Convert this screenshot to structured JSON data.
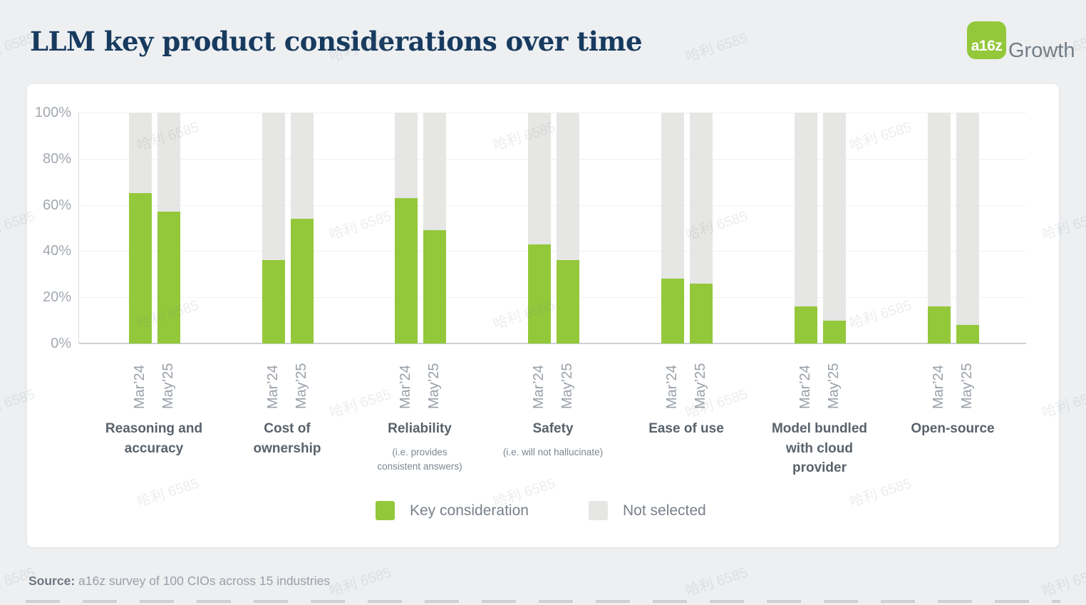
{
  "page": {
    "title": "LLM key product considerations over time",
    "logo": {
      "badge": "a16z",
      "suffix": "Growth"
    },
    "source_label": "Source:",
    "source_text": " a16z survey of 100 CIOs across 15 industries",
    "watermark_text": "哈利 6585"
  },
  "colors": {
    "green": "#93c83a",
    "not_selected_gray": "#e6e6e4",
    "title_navy": "#173a5f",
    "page_background": "#edeff1",
    "card_background": "#ffffff"
  },
  "chart_data": {
    "type": "bar",
    "stacked": true,
    "title": "LLM key product considerations over time",
    "ylim": [
      0,
      100
    ],
    "ytick_labels": [
      "0%",
      "20%",
      "40%",
      "60%",
      "80%",
      "100%"
    ],
    "grid": true,
    "unit": "percent",
    "categories": [
      "Reasoning and accuracy",
      "Cost of ownership",
      "Reliability",
      "Safety",
      "Ease of use",
      "Model bundled with cloud provider",
      "Open-source"
    ],
    "category_sublabels": [
      [],
      [],
      [
        "(i.e. provides",
        "consistent answers)"
      ],
      [
        "(i.e. will not hallucinate)"
      ],
      [],
      [],
      []
    ],
    "x_periods": [
      "Mar’24",
      "May’25"
    ],
    "series": [
      {
        "name": "Mar’24",
        "values": [
          65,
          36,
          63,
          43,
          28,
          16,
          16
        ]
      },
      {
        "name": "May’25",
        "values": [
          57,
          54,
          49,
          36,
          26,
          10,
          8
        ]
      }
    ],
    "not_selected_values_note": "gray segment = 100 minus green value",
    "legend": {
      "position": "bottom",
      "entries": [
        {
          "label": "Key consideration",
          "color": "#93c83a"
        },
        {
          "label": "Not selected",
          "color": "#e6e6e4"
        }
      ]
    }
  }
}
